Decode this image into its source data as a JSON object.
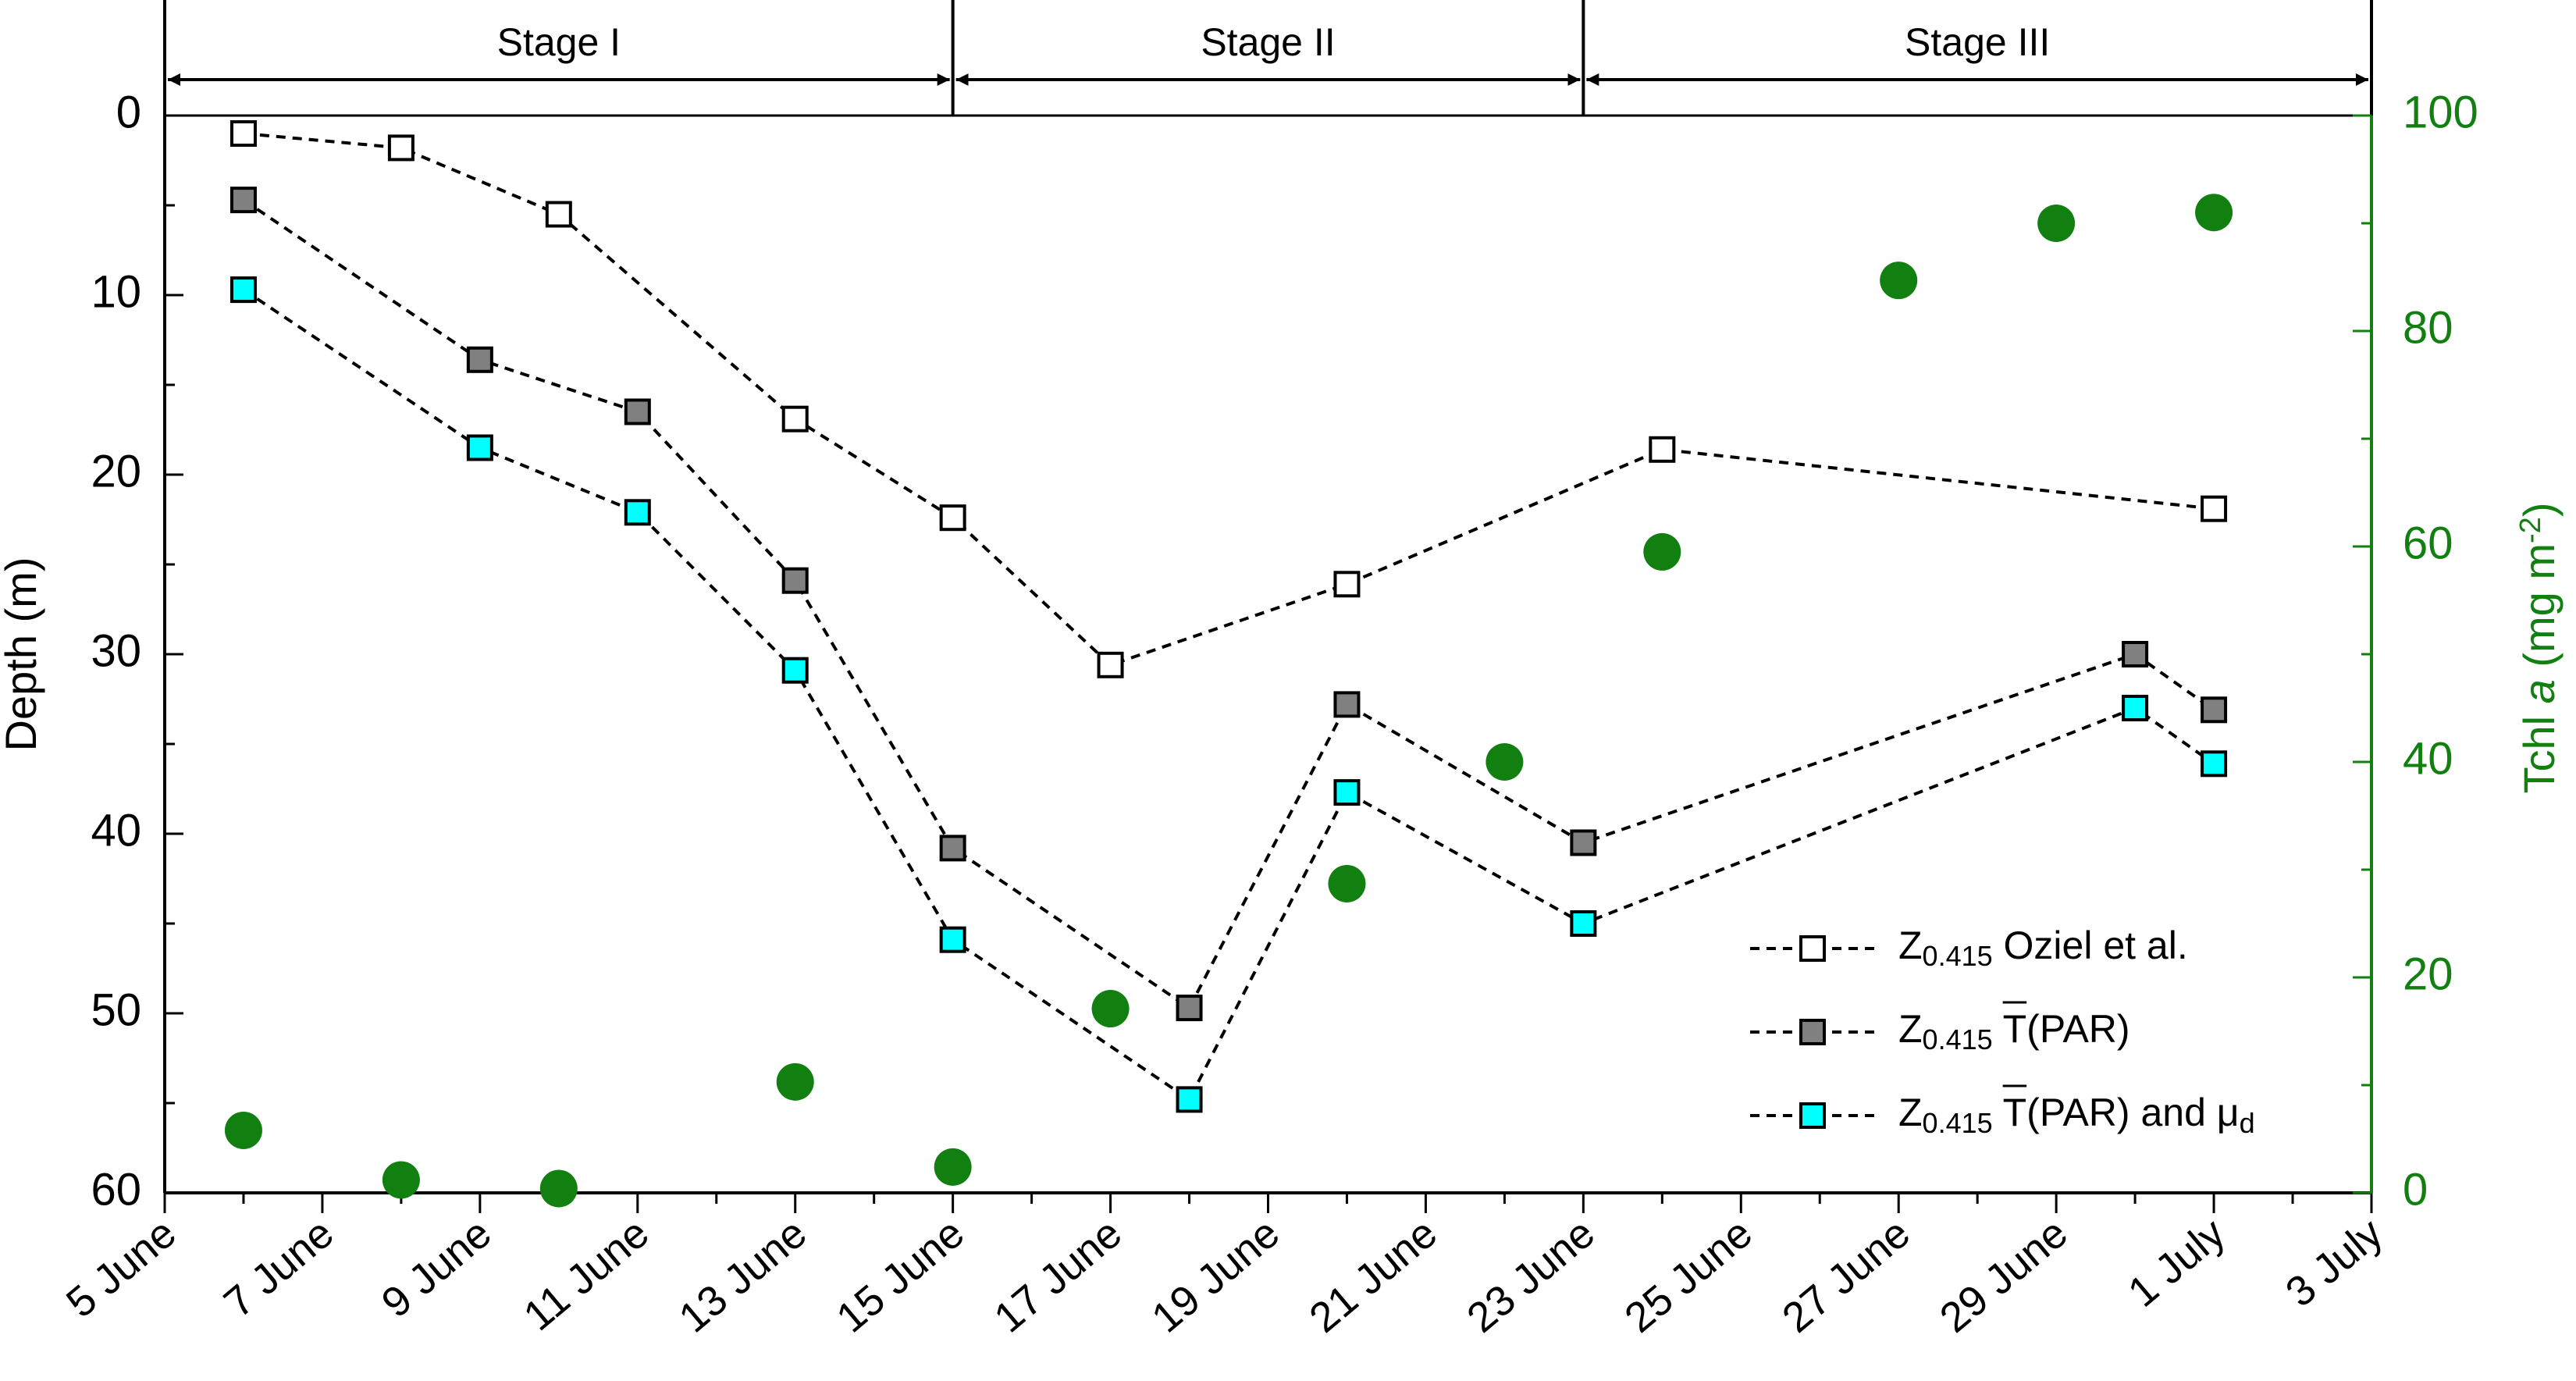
{
  "chart_data": {
    "type": "scatter",
    "x_range_days": [
      0,
      28
    ],
    "x_tick_labels": [
      "5 June",
      "7 June",
      "9 June",
      "11 June",
      "13 June",
      "15 June",
      "17 June",
      "19 June",
      "21 June",
      "23 June",
      "25 June",
      "27 June",
      "29 June",
      "1 July",
      "3 July"
    ],
    "ylabel_left": "Depth (m)",
    "ylim_left": [
      0,
      60
    ],
    "ylim_left_inverted": true,
    "y_left_ticks": [
      "0",
      "10",
      "20",
      "30",
      "40",
      "50",
      "60"
    ],
    "ylabel_right_parts": [
      "Tchl ",
      "a",
      " (mg m",
      "-2",
      ")"
    ],
    "ylim_right": [
      0,
      100
    ],
    "y_right_ticks": [
      "0",
      "20",
      "40",
      "60",
      "80",
      "100"
    ],
    "stages": [
      {
        "label": "Stage I",
        "start_day": 0,
        "end_day": 10
      },
      {
        "label": "Stage II",
        "start_day": 10,
        "end_day": 18
      },
      {
        "label": "Stage III",
        "start_day": 18,
        "end_day": 28
      }
    ],
    "series": [
      {
        "name": "Z0.415 Oziel et al.",
        "legend_label": "Z",
        "legend_sub": "0.415",
        "legend_rest": " Oziel et al.",
        "axis": "left",
        "style": "dashed-line-square",
        "fill": "#ffffff",
        "points": [
          {
            "day": 1,
            "y": 1.0
          },
          {
            "day": 3,
            "y": 1.8
          },
          {
            "day": 5,
            "y": 5.5
          },
          {
            "day": 8,
            "y": 16.9
          },
          {
            "day": 10,
            "y": 22.4
          },
          {
            "day": 12,
            "y": 30.6
          },
          {
            "day": 15,
            "y": 26.1
          },
          {
            "day": 19,
            "y": 18.6
          },
          {
            "day": 26,
            "y": 21.9
          }
        ]
      },
      {
        "name": "Z0.415 T(PAR)",
        "legend_label": "Z",
        "legend_sub": "0.415",
        "legend_rest": " T(PAR)",
        "axis": "left",
        "style": "dashed-line-square",
        "fill": "#808080",
        "points": [
          {
            "day": 1,
            "y": 4.7
          },
          {
            "day": 4,
            "y": 13.6
          },
          {
            "day": 6,
            "y": 16.5
          },
          {
            "day": 8,
            "y": 25.9
          },
          {
            "day": 10,
            "y": 40.8
          },
          {
            "day": 13,
            "y": 49.7
          },
          {
            "day": 15,
            "y": 32.8
          },
          {
            "day": 18,
            "y": 40.5
          },
          {
            "day": 25,
            "y": 30.0
          },
          {
            "day": 26,
            "y": 33.1
          }
        ]
      },
      {
        "name": "Z0.415 T(PAR) and μd",
        "legend_label": "Z",
        "legend_sub": "0.415",
        "legend_rest": " T(PAR) and μ",
        "legend_sub2": "d",
        "axis": "left",
        "style": "dashed-line-square",
        "fill": "#00ffff",
        "points": [
          {
            "day": 1,
            "y": 9.7
          },
          {
            "day": 4,
            "y": 18.5
          },
          {
            "day": 6,
            "y": 22.1
          },
          {
            "day": 8,
            "y": 30.9
          },
          {
            "day": 10,
            "y": 45.9
          },
          {
            "day": 13,
            "y": 54.8
          },
          {
            "day": 15,
            "y": 37.7
          },
          {
            "day": 18,
            "y": 45.0
          },
          {
            "day": 25,
            "y": 33.0
          },
          {
            "day": 26,
            "y": 36.1
          }
        ]
      },
      {
        "name": "Tchl a",
        "axis": "right",
        "style": "circle",
        "fill": "#118011",
        "points": [
          {
            "day": 1,
            "y": 5.8
          },
          {
            "day": 3,
            "y": 1.2
          },
          {
            "day": 5,
            "y": 0.4
          },
          {
            "day": 8,
            "y": 10.3
          },
          {
            "day": 10,
            "y": 2.4
          },
          {
            "day": 12,
            "y": 17.1
          },
          {
            "day": 15,
            "y": 28.7
          },
          {
            "day": 17,
            "y": 40.0
          },
          {
            "day": 19,
            "y": 59.5
          },
          {
            "day": 22,
            "y": 84.7
          },
          {
            "day": 24,
            "y": 90.0
          },
          {
            "day": 26,
            "y": 91.0
          }
        ]
      }
    ],
    "colors": {
      "axis": "#000000",
      "right_axis": "#118011",
      "dash_line": "#000000"
    }
  }
}
